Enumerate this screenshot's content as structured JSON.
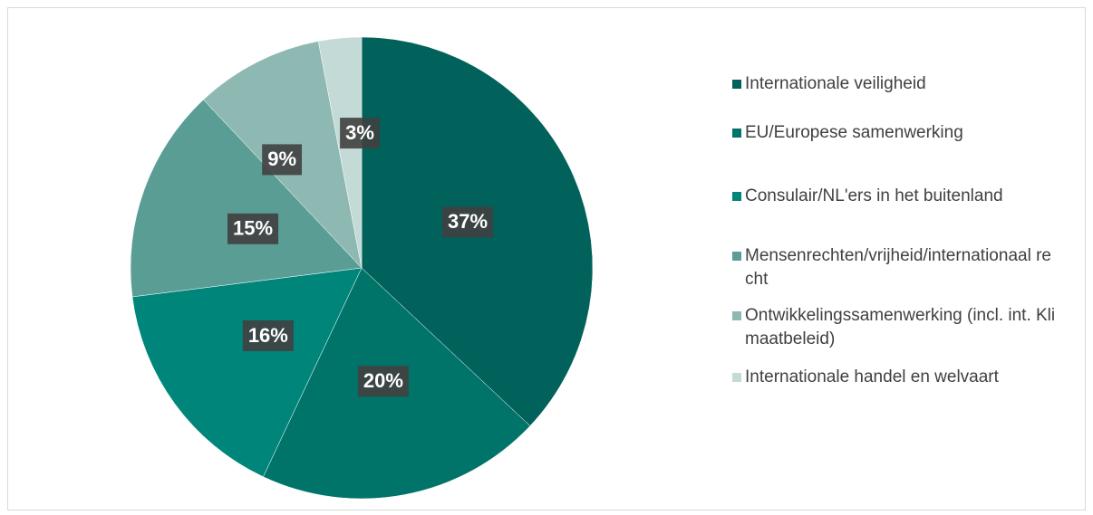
{
  "chart_data": {
    "type": "pie",
    "categories": [
      "Internationale veiligheid",
      "EU/Europese samenwerking",
      "Consulair/NL'ers in het buitenland",
      "Mensenrechten/vrijheid/internationaal recht",
      "Ontwikkelingssamenwerking (incl. int. Klimaatbeleid)",
      "Internationale handel en welvaart"
    ],
    "values": [
      37,
      20,
      16,
      15,
      9,
      3
    ],
    "value_labels": [
      "37%",
      "20%",
      "16%",
      "15%",
      "9%",
      "3%"
    ],
    "colors": [
      "#00625a",
      "#007468",
      "#00857a",
      "#5a9d95",
      "#8eb8b2",
      "#c3dad6"
    ],
    "legend": "right"
  }
}
